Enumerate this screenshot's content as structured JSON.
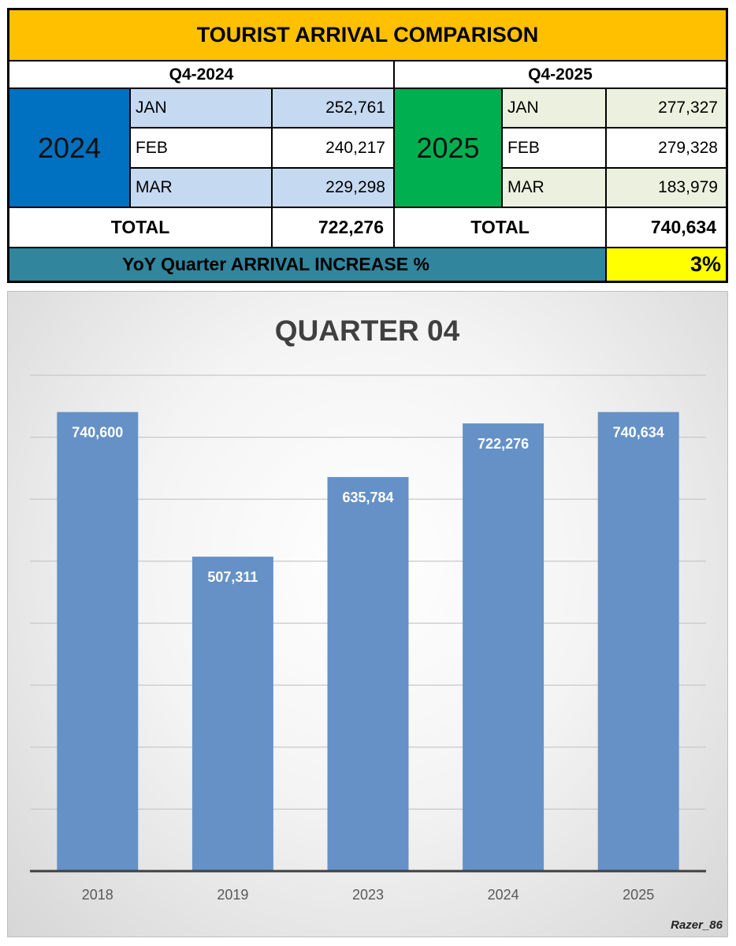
{
  "table": {
    "title": "TOURIST ARRIVAL COMPARISON",
    "left": {
      "header": "Q4-2024",
      "year": "2024",
      "year_color": "#0070C0",
      "months": [
        {
          "month": "JAN",
          "value": "252,761"
        },
        {
          "month": "FEB",
          "value": "240,217"
        },
        {
          "month": "MAR",
          "value": "229,298"
        }
      ],
      "total_label": "TOTAL",
      "total_value": "722,276"
    },
    "right": {
      "header": "Q4-2025",
      "year": "2025",
      "year_color": "#00B050",
      "months": [
        {
          "month": "JAN",
          "value": "277,327"
        },
        {
          "month": "FEB",
          "value": "279,328"
        },
        {
          "month": "MAR",
          "value": "183,979"
        }
      ],
      "total_label": "TOTAL",
      "total_value": "740,634"
    },
    "yoy_label": "YoY Quarter ARRIVAL INCREASE %",
    "yoy_value": "3%"
  },
  "chart_data": {
    "type": "bar",
    "title": "QUARTER 04",
    "categories": [
      "2018",
      "2019",
      "2023",
      "2024",
      "2025"
    ],
    "values": [
      740600,
      507311,
      635784,
      722276,
      740634
    ],
    "value_labels": [
      "740,600",
      "507,311",
      "635,784",
      "722,276",
      "740,634"
    ],
    "ylim": [
      0,
      800000
    ],
    "grid": true,
    "bar_color": "#6591C7"
  },
  "credit": "Razer_86"
}
